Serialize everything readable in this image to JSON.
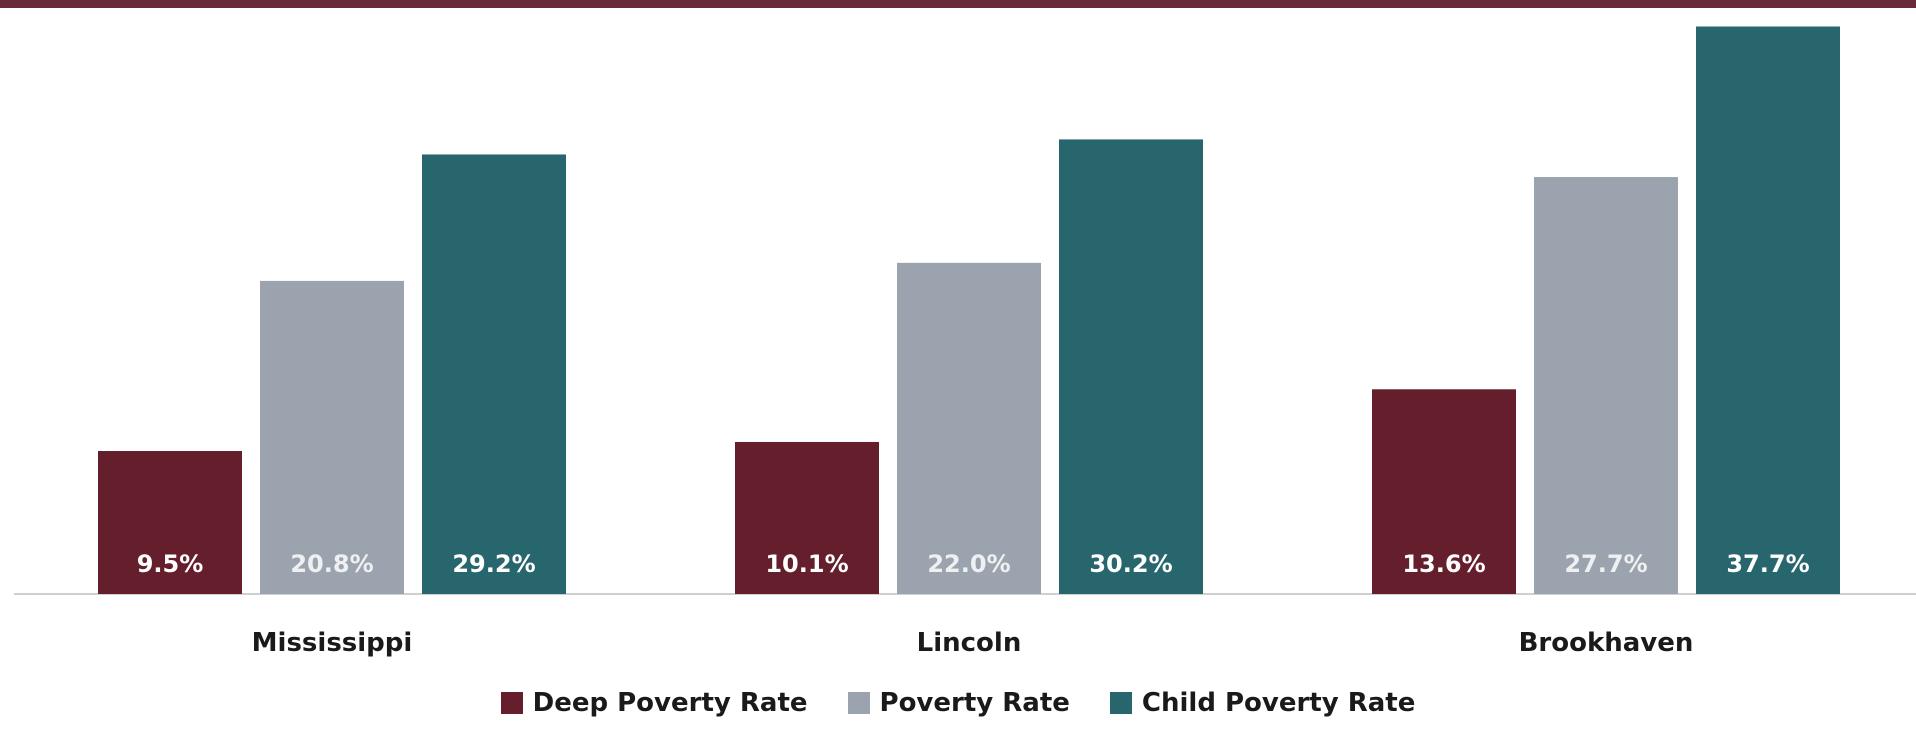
{
  "chart_data": {
    "type": "bar",
    "categories": [
      "Mississippi",
      "Lincoln",
      "Brookhaven"
    ],
    "series": [
      {
        "name": "Deep Poverty Rate",
        "color": "#641e2c",
        "values": [
          9.5,
          10.1,
          13.6
        ],
        "labels": [
          "9.5%",
          "10.1%",
          "13.6%"
        ]
      },
      {
        "name": "Poverty Rate",
        "color": "#9ba4ae",
        "values": [
          20.8,
          22.0,
          27.7
        ],
        "labels": [
          "20.8%",
          "22.0%",
          "27.7%"
        ]
      },
      {
        "name": "Child Poverty Rate",
        "color": "#28666e",
        "values": [
          29.2,
          30.2,
          37.7
        ],
        "labels": [
          "29.2%",
          "30.2%",
          "37.7%"
        ]
      }
    ],
    "ylim": [
      0,
      38
    ],
    "grid": false,
    "legend_position": "bottom"
  },
  "colors": {
    "header_bar": "#6b2a3a",
    "axis_line": "#cfcfcf"
  }
}
